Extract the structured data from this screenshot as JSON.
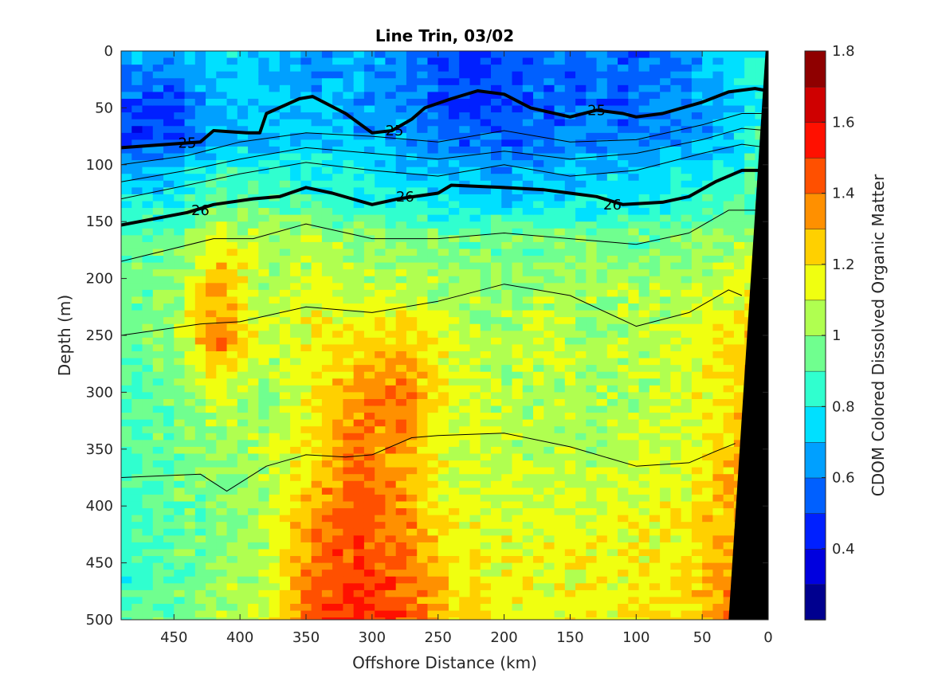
{
  "chart_data": {
    "type": "heatmap",
    "title": "Line Trin, 03/02",
    "xlabel": "Offshore Distance (km)",
    "ylabel": "Depth (m)",
    "colorbar_label": "CDOM Colored Dissolved Organic Matter",
    "x_axis_reversed": true,
    "y_axis_reversed": true,
    "xlim": [
      490,
      0
    ],
    "ylim": [
      0,
      500
    ],
    "x_ticks": [
      450,
      400,
      350,
      300,
      250,
      200,
      150,
      100,
      50,
      0
    ],
    "y_ticks": [
      0,
      50,
      100,
      150,
      200,
      250,
      300,
      350,
      400,
      450,
      500
    ],
    "color_range": [
      0.2,
      1.8
    ],
    "color_levels": 16,
    "colorbar_ticks": [
      0.4,
      0.6,
      0.8,
      1,
      1.2,
      1.4,
      1.6,
      1.8
    ],
    "colors": {
      "level_colors": [
        "#00008f",
        "#0000df",
        "#0020ff",
        "#0060ff",
        "#00a0ff",
        "#00e0ff",
        "#30ffcf",
        "#70ff8f",
        "#b0ff50",
        "#f0ff10",
        "#ffd000",
        "#ff9000",
        "#ff5000",
        "#ff1000",
        "#cf0000",
        "#8f0000"
      ],
      "bathymetry": "#000000"
    },
    "field_samples": {
      "x": [
        490,
        455,
        420,
        385,
        350,
        315,
        280,
        245,
        210,
        175,
        140,
        105,
        70,
        35,
        10
      ],
      "y": [
        0,
        40,
        70,
        100,
        130,
        160,
        200,
        250,
        300,
        350,
        400,
        450,
        500
      ],
      "z": [
        [
          0.7,
          0.65,
          0.75,
          0.7,
          0.6,
          0.68,
          0.62,
          0.5,
          0.5,
          0.55,
          0.6,
          0.55,
          0.6,
          0.75,
          0.85
        ],
        [
          0.55,
          0.5,
          0.68,
          0.72,
          0.68,
          0.65,
          0.6,
          0.48,
          0.5,
          0.55,
          0.55,
          0.55,
          0.6,
          0.7,
          0.8
        ],
        [
          0.45,
          0.48,
          0.7,
          0.68,
          0.72,
          0.68,
          0.65,
          0.55,
          0.52,
          0.55,
          0.6,
          0.55,
          0.62,
          0.72,
          0.85
        ],
        [
          0.65,
          0.68,
          0.85,
          0.78,
          0.8,
          0.78,
          0.72,
          0.68,
          0.65,
          0.68,
          0.7,
          0.72,
          0.75,
          0.8,
          0.9
        ],
        [
          0.8,
          0.82,
          0.95,
          0.9,
          0.88,
          0.82,
          0.78,
          0.75,
          0.72,
          0.75,
          0.78,
          0.8,
          0.82,
          0.88,
          0.95
        ],
        [
          0.9,
          0.92,
          1.15,
          1.02,
          1.05,
          1.0,
          0.98,
          0.95,
          0.95,
          0.95,
          0.95,
          0.95,
          0.95,
          1.0,
          1.05
        ],
        [
          0.95,
          0.98,
          1.3,
          1.05,
          1.1,
          1.05,
          1.05,
          1.02,
          1.0,
          1.0,
          1.02,
          1.05,
          1.02,
          1.1,
          1.15
        ],
        [
          0.95,
          1.0,
          1.4,
          1.05,
          1.15,
          1.2,
          1.25,
          1.1,
          1.05,
          1.1,
          1.05,
          1.05,
          1.1,
          1.2,
          1.25
        ],
        [
          0.9,
          0.95,
          1.1,
          1.0,
          1.15,
          1.35,
          1.4,
          1.15,
          1.05,
          1.05,
          1.05,
          1.05,
          1.1,
          1.2,
          1.35
        ],
        [
          0.9,
          0.95,
          1.0,
          1.05,
          1.2,
          1.4,
          1.3,
          1.1,
          1.1,
          1.05,
          1.05,
          1.1,
          1.1,
          1.25,
          1.4
        ],
        [
          0.85,
          0.95,
          0.95,
          1.05,
          1.3,
          1.45,
          1.35,
          1.15,
          1.1,
          1.1,
          1.1,
          1.15,
          1.15,
          1.3,
          1.4
        ],
        [
          0.85,
          0.9,
          1.0,
          1.05,
          1.4,
          1.5,
          1.4,
          1.2,
          1.15,
          1.15,
          1.15,
          1.15,
          1.2,
          1.35,
          1.45
        ],
        [
          0.9,
          0.95,
          1.05,
          1.1,
          1.45,
          1.55,
          1.45,
          1.25,
          1.2,
          1.15,
          1.15,
          1.2,
          1.2,
          1.35,
          1.45
        ]
      ]
    },
    "density_contours": [
      {
        "level": 25,
        "bold": true,
        "labels": [
          "25",
          "25",
          "25"
        ],
        "x": [
          490,
          430,
          420,
          395,
          385,
          380,
          355,
          345,
          320,
          300,
          285,
          270,
          260,
          240,
          220,
          200,
          180,
          150,
          130,
          110,
          100,
          80,
          50,
          30,
          10,
          0
        ],
        "y": [
          85,
          80,
          70,
          72,
          72,
          55,
          42,
          40,
          55,
          72,
          70,
          60,
          50,
          42,
          35,
          38,
          50,
          58,
          52,
          55,
          58,
          55,
          45,
          36,
          33,
          35
        ]
      },
      {
        "level": 26,
        "bold": true,
        "labels": [
          "26",
          "26",
          "26"
        ],
        "x": [
          490,
          440,
          420,
          390,
          370,
          350,
          330,
          300,
          280,
          250,
          240,
          200,
          170,
          150,
          130,
          110,
          80,
          60,
          40,
          20,
          0
        ],
        "y": [
          153,
          142,
          135,
          130,
          128,
          120,
          125,
          135,
          130,
          125,
          118,
          120,
          122,
          125,
          128,
          135,
          133,
          128,
          115,
          105,
          105
        ]
      },
      {
        "level": 25.2,
        "bold": false,
        "x": [
          490,
          440,
          400,
          350,
          300,
          250,
          200,
          150,
          100,
          50,
          20,
          0
        ],
        "y": [
          100,
          92,
          80,
          72,
          75,
          80,
          70,
          80,
          78,
          65,
          55,
          55
        ]
      },
      {
        "level": 25.4,
        "bold": false,
        "x": [
          490,
          440,
          400,
          350,
          300,
          250,
          200,
          150,
          100,
          50,
          20,
          0
        ],
        "y": [
          115,
          105,
          95,
          85,
          90,
          95,
          88,
          95,
          90,
          78,
          68,
          70
        ]
      },
      {
        "level": 25.6,
        "bold": false,
        "x": [
          490,
          440,
          400,
          350,
          300,
          250,
          200,
          150,
          100,
          50,
          20,
          0
        ],
        "y": [
          130,
          118,
          108,
          98,
          105,
          110,
          100,
          110,
          105,
          90,
          82,
          85
        ]
      },
      {
        "level": 26.2,
        "bold": false,
        "x": [
          490,
          420,
          390,
          350,
          300,
          250,
          200,
          150,
          100,
          60,
          30,
          0
        ],
        "y": [
          185,
          165,
          165,
          152,
          165,
          165,
          160,
          165,
          170,
          160,
          140,
          140
        ]
      },
      {
        "level": 26.4,
        "bold": false,
        "x": [
          490,
          430,
          400,
          350,
          300,
          250,
          200,
          150,
          100,
          60,
          30,
          20
        ],
        "y": [
          250,
          240,
          238,
          225,
          230,
          220,
          205,
          215,
          242,
          230,
          210,
          215
        ]
      },
      {
        "level": 26.6,
        "bold": false,
        "x": [
          490,
          430,
          410,
          380,
          350,
          320,
          300,
          270,
          250,
          200,
          150,
          100,
          60,
          40,
          25
        ],
        "y": [
          375,
          372,
          387,
          365,
          355,
          357,
          355,
          340,
          338,
          336,
          348,
          365,
          362,
          352,
          345
        ]
      }
    ],
    "bathymetry_boundary": {
      "x": [
        2,
        30
      ],
      "y": [
        0,
        500
      ]
    },
    "legend": "none",
    "grid": false
  }
}
